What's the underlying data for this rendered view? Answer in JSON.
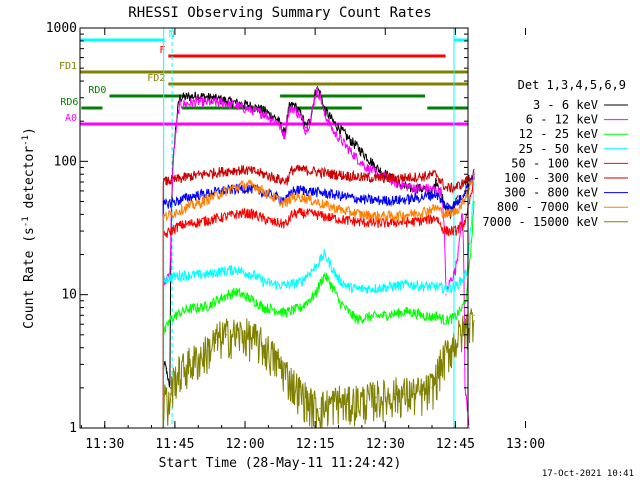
{
  "chart_data": {
    "type": "line",
    "title": "RHESSI Observing Summary Count Rates",
    "xlabel": "Start Time (28-May-11 11:24:42)",
    "ylabel_main": "Count Rate (s",
    "ylabel_sup": "-1",
    "ylabel_rest": " detector",
    "ylabel_end": ")",
    "yscale": "log",
    "ylim": [
      1,
      1000
    ],
    "xlim_min": [
      24.7,
      84.7
    ],
    "x_ticks": [
      {
        "t": 30,
        "label": "11:30"
      },
      {
        "t": 45,
        "label": "11:45"
      },
      {
        "t": 60,
        "label": "12:00"
      },
      {
        "t": 75,
        "label": "12:15"
      },
      {
        "t": 90,
        "label": "12:30"
      },
      {
        "t": 105,
        "label": "12:45"
      },
      {
        "t": 120,
        "label": "13:00"
      }
    ],
    "y_ticks": [
      {
        "v": 1,
        "label": "1"
      },
      {
        "v": 10,
        "label": "10"
      },
      {
        "v": 100,
        "label": "100"
      },
      {
        "v": 1000,
        "label": "1000"
      }
    ],
    "legend_title": "Det 1,3,4,5,6,9",
    "series": [
      {
        "name": "3 - 6 keV",
        "color": "#000000",
        "x": [
          42.5,
          42.6,
          43.2,
          43.4,
          44,
          46,
          50,
          55,
          58,
          61,
          64,
          67,
          68.5,
          69.5,
          70.5,
          72,
          73,
          74,
          75.3,
          76,
          77,
          79,
          82,
          85,
          88,
          91,
          93,
          95,
          97,
          98.5,
          100,
          101,
          102.5,
          103,
          104,
          105.5
        ],
        "y": [
          2.5,
          3,
          2.8,
          2.3,
          2,
          300,
          310,
          290,
          275,
          262,
          240,
          205,
          160,
          255,
          265,
          225,
          180,
          205,
          355,
          330,
          245,
          195,
          150,
          118,
          90,
          76,
          67,
          63,
          63,
          62,
          58,
          72,
          50,
          44,
          40,
          55
        ]
      },
      {
        "name": "6 - 12 keV",
        "color": "#ff00ff",
        "x": [
          42.5,
          43.2,
          44,
          46,
          50,
          55,
          58,
          61,
          64,
          67,
          68.5,
          69.5,
          70.5,
          72,
          73,
          74,
          75.3,
          76,
          77,
          79,
          82,
          84,
          86,
          88,
          90,
          92,
          94,
          96,
          98,
          100,
          101,
          102,
          103,
          104,
          105,
          105.5,
          106.5,
          107,
          108
        ],
        "y": [
          12,
          13,
          14,
          265,
          280,
          275,
          262,
          245,
          228,
          195,
          155,
          245,
          250,
          210,
          170,
          200,
          340,
          315,
          225,
          165,
          125,
          105,
          90,
          82,
          76,
          70,
          66,
          63,
          63,
          62,
          60,
          60,
          10,
          13,
          15,
          20,
          40,
          2,
          1
        ]
      },
      {
        "name": "12 - 25 keV",
        "color": "#00ff00",
        "x": [
          42.5,
          44,
          46,
          48,
          52,
          55,
          58,
          62,
          64,
          66,
          68,
          69,
          72,
          75,
          77,
          79,
          80,
          82,
          84,
          86,
          88,
          90,
          92,
          95,
          98,
          100,
          101,
          102,
          103,
          105,
          106.5,
          107.5,
          108.5,
          109
        ],
        "y": [
          5,
          6.5,
          7.3,
          7.8,
          8.2,
          9.5,
          10.5,
          9,
          8,
          7.8,
          7.4,
          7.4,
          8,
          10,
          14,
          11,
          9,
          7.5,
          6.5,
          6.8,
          6.9,
          7,
          7.2,
          7.5,
          7,
          6.8,
          7,
          6.6,
          6.4,
          6.8,
          8,
          10,
          25,
          50
        ]
      },
      {
        "name": "25 - 50 keV",
        "color": "#00ffff",
        "x": [
          42.5,
          44,
          46,
          48,
          52,
          55,
          58,
          62,
          64,
          66,
          68,
          69,
          72,
          75,
          77,
          79,
          80,
          82,
          84,
          86,
          88,
          90,
          92,
          95,
          98,
          100,
          101,
          102,
          103,
          105,
          106.5,
          107.5,
          108.5,
          109
        ],
        "y": [
          13,
          13.5,
          14,
          14,
          14.2,
          15,
          15.5,
          14,
          12.5,
          12,
          11.8,
          11.8,
          12.5,
          16,
          20,
          15,
          13,
          11.5,
          11,
          11.1,
          11.2,
          11.4,
          11.6,
          12,
          11.6,
          11.5,
          11.5,
          11.3,
          11.2,
          11.5,
          13,
          15,
          35,
          70
        ]
      },
      {
        "name": "50 - 100 keV",
        "color": "#ff0000",
        "x": [
          42.5,
          44,
          46,
          48,
          50,
          55,
          58,
          60,
          62,
          64,
          66,
          68,
          69,
          70,
          72,
          75,
          78,
          82,
          85,
          88,
          90,
          92,
          95,
          98,
          100,
          101,
          102,
          103,
          105,
          106.5,
          107.5,
          108.5,
          109
        ],
        "y": [
          27,
          30,
          33,
          34,
          35,
          38,
          40,
          41,
          40,
          37,
          35,
          34,
          34,
          40,
          41,
          40,
          38,
          36,
          35,
          34.5,
          34.5,
          35,
          35,
          36,
          37,
          38,
          32,
          30,
          30,
          33,
          38,
          60,
          80
        ]
      },
      {
        "name": "100 - 300 keV",
        "color": "#cc0000",
        "x": [
          42.5,
          44,
          46,
          48,
          50,
          55,
          58,
          60,
          62,
          64,
          66,
          68,
          69,
          70,
          72,
          75,
          78,
          82,
          85,
          88,
          90,
          92,
          95,
          98,
          100,
          101,
          102,
          103,
          105,
          106.5,
          107.5,
          108.5,
          109
        ],
        "y": [
          70,
          72,
          74,
          77,
          79,
          84,
          86,
          86,
          84,
          80,
          76,
          72,
          72,
          86,
          87,
          84,
          81,
          78,
          76,
          75,
          75,
          75,
          76,
          77,
          79,
          80,
          70,
          63,
          64,
          68,
          72,
          78,
          82
        ]
      },
      {
        "name": "300 - 800 keV",
        "color": "#0000ff",
        "x": [
          42.5,
          44,
          46,
          48,
          50,
          55,
          58,
          60,
          62,
          64,
          66,
          68,
          69,
          70,
          72,
          75,
          78,
          82,
          85,
          88,
          90,
          92,
          95,
          98,
          100,
          101,
          102,
          103,
          105,
          106.5,
          107.5,
          108.5,
          109
        ],
        "y": [
          47,
          49,
          51,
          54,
          56,
          60,
          62,
          63,
          62,
          58,
          55,
          52,
          52,
          60,
          61,
          59,
          57,
          54,
          52,
          51,
          51,
          51,
          52,
          54,
          56,
          57,
          50,
          46,
          47,
          55,
          65,
          75,
          80
        ]
      },
      {
        "name": "800 - 7000 keV",
        "color": "#ff8000",
        "x": [
          42.5,
          44,
          46,
          48,
          50,
          55,
          58,
          60,
          62,
          64,
          66,
          68,
          69,
          70,
          72,
          75,
          78,
          82,
          85,
          88,
          90,
          92,
          95,
          98,
          100,
          101,
          102,
          103,
          105,
          106.5,
          107.5,
          108.5,
          109
        ],
        "y": [
          38,
          40,
          43,
          46,
          48,
          58,
          64,
          67,
          66,
          60,
          54,
          49,
          49,
          54,
          54,
          50,
          46,
          42,
          40,
          39,
          39,
          39,
          40,
          42,
          44,
          45,
          42,
          40,
          42,
          48,
          58,
          70,
          82
        ]
      },
      {
        "name": "7000 - 15000 keV",
        "color": "#808000",
        "x": [
          42.5,
          43,
          43.5,
          44,
          45,
          46,
          48,
          50,
          52,
          54,
          56,
          58,
          60,
          62,
          64,
          66,
          68,
          70,
          72,
          74,
          76,
          78,
          80,
          82,
          84,
          86,
          88,
          90,
          92,
          94,
          96,
          98,
          100,
          101,
          102,
          104,
          106,
          108,
          109
        ],
        "y": [
          1.5,
          2,
          1.2,
          1.8,
          2.4,
          2.6,
          3,
          3.3,
          3.8,
          4.6,
          5,
          5,
          5,
          4.6,
          4.1,
          3.4,
          2.8,
          2.2,
          1.8,
          1.5,
          1.4,
          1.5,
          1.6,
          1.5,
          1.6,
          1.6,
          1.7,
          1.7,
          1.8,
          1.8,
          1.8,
          1.8,
          2,
          2.4,
          3,
          4,
          5,
          6,
          7
        ]
      }
    ],
    "flags": [
      {
        "label": "N",
        "color": "#00ffff",
        "level_frac": 0.97,
        "segments": [
          [
            24.7,
            42.8
          ],
          [
            104.6,
            125
          ]
        ]
      },
      {
        "label": "F",
        "color": "#ff0000",
        "level_frac": 0.93,
        "segments": [
          [
            43.6,
            102.9
          ]
        ]
      },
      {
        "label": "FD1",
        "color": "#808000",
        "level_frac": 0.89,
        "segments": [
          [
            24.7,
            125
          ]
        ]
      },
      {
        "label": "FD2",
        "color": "#808000",
        "level_frac": 0.86,
        "segments": [
          [
            43.6,
            125
          ]
        ]
      },
      {
        "label": "RD0",
        "color": "#008000",
        "level_frac": 0.83,
        "segments": [
          [
            31,
            47
          ],
          [
            67.5,
            98.5
          ]
        ]
      },
      {
        "label": "RD6",
        "color": "#008000",
        "level_frac": 0.8,
        "segments": [
          [
            25,
            29.5
          ],
          [
            46.5,
            64.5
          ],
          [
            70.5,
            85
          ],
          [
            99,
            125
          ]
        ]
      },
      {
        "label": "A0",
        "color": "#ff00ff",
        "level_frac": 0.76,
        "segments": [
          [
            24.7,
            125
          ]
        ]
      }
    ],
    "vlines": [
      {
        "t": 24.7,
        "color": "#00ffff",
        "dash": false
      },
      {
        "t": 42.6,
        "color": "#00ffff",
        "dash": false
      },
      {
        "t": 44.4,
        "color": "#00ffff",
        "dash": true
      },
      {
        "t": 104.7,
        "color": "#00ffff",
        "dash": false
      },
      {
        "t": 120.5,
        "color": "#00ffff",
        "dash": true
      }
    ],
    "timestamp": "17-Oct-2021 10:41"
  }
}
